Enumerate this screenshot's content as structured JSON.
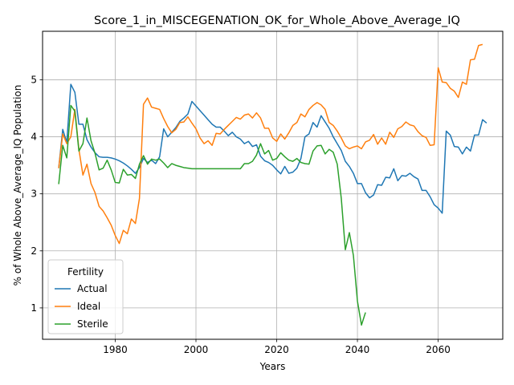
{
  "chart_data": {
    "type": "line",
    "title": "Score_1_in_MISCEGENATION_OK_for_Whole_Above_Average_IQ",
    "xlabel": "Years",
    "ylabel": "% of Whole Above_Average_IQ Population",
    "xlim": [
      1962,
      2076
    ],
    "ylim": [
      0.45,
      5.85
    ],
    "xticks": [
      1980,
      2000,
      2020,
      2040,
      2060
    ],
    "yticks": [
      1,
      2,
      3,
      4,
      5
    ],
    "grid": true,
    "legend": {
      "title": "Fertility",
      "placement": "lower-left"
    },
    "series": [
      {
        "name": "Actual",
        "color": "#1f77b4",
        "points": [
          [
            1966,
            3.45
          ],
          [
            1967,
            4.13
          ],
          [
            1968,
            3.9
          ],
          [
            1969,
            4.92
          ],
          [
            1970,
            4.78
          ],
          [
            1971,
            4.22
          ],
          [
            1972,
            4.22
          ],
          [
            1973,
            3.95
          ],
          [
            1974,
            3.82
          ],
          [
            1975,
            3.72
          ],
          [
            1976,
            3.65
          ],
          [
            1977,
            3.64
          ],
          [
            1978,
            3.64
          ],
          [
            1979,
            3.63
          ],
          [
            1980,
            3.61
          ],
          [
            1981,
            3.58
          ],
          [
            1982,
            3.54
          ],
          [
            1983,
            3.49
          ],
          [
            1984,
            3.43
          ],
          [
            1985,
            3.36
          ],
          [
            1986,
            3.46
          ],
          [
            1987,
            3.62
          ],
          [
            1988,
            3.55
          ],
          [
            1989,
            3.59
          ],
          [
            1990,
            3.53
          ],
          [
            1991,
            3.65
          ],
          [
            1992,
            4.14
          ],
          [
            1993,
            4.0
          ],
          [
            1994,
            4.08
          ],
          [
            1995,
            4.16
          ],
          [
            1996,
            4.27
          ],
          [
            1997,
            4.33
          ],
          [
            1998,
            4.4
          ],
          [
            1999,
            4.62
          ],
          [
            2000,
            4.54
          ],
          [
            2001,
            4.46
          ],
          [
            2002,
            4.38
          ],
          [
            2003,
            4.3
          ],
          [
            2004,
            4.22
          ],
          [
            2005,
            4.17
          ],
          [
            2006,
            4.17
          ],
          [
            2007,
            4.1
          ],
          [
            2008,
            4.02
          ],
          [
            2009,
            4.08
          ],
          [
            2010,
            4.0
          ],
          [
            2011,
            3.96
          ],
          [
            2012,
            3.88
          ],
          [
            2013,
            3.92
          ],
          [
            2014,
            3.83
          ],
          [
            2015,
            3.86
          ],
          [
            2016,
            3.66
          ],
          [
            2017,
            3.58
          ],
          [
            2018,
            3.55
          ],
          [
            2019,
            3.5
          ],
          [
            2020,
            3.42
          ],
          [
            2021,
            3.35
          ],
          [
            2022,
            3.48
          ],
          [
            2023,
            3.36
          ],
          [
            2024,
            3.38
          ],
          [
            2025,
            3.45
          ],
          [
            2026,
            3.62
          ],
          [
            2027,
            4.0
          ],
          [
            2028,
            4.05
          ],
          [
            2029,
            4.25
          ],
          [
            2030,
            4.17
          ],
          [
            2031,
            4.37
          ],
          [
            2032,
            4.26
          ],
          [
            2033,
            4.15
          ],
          [
            2034,
            4.0
          ],
          [
            2035,
            3.88
          ],
          [
            2036,
            3.76
          ],
          [
            2037,
            3.57
          ],
          [
            2038,
            3.48
          ],
          [
            2039,
            3.36
          ],
          [
            2040,
            3.18
          ],
          [
            2041,
            3.18
          ],
          [
            2042,
            3.02
          ],
          [
            2043,
            2.93
          ],
          [
            2044,
            2.98
          ],
          [
            2045,
            3.16
          ],
          [
            2046,
            3.15
          ],
          [
            2047,
            3.29
          ],
          [
            2048,
            3.28
          ],
          [
            2049,
            3.44
          ],
          [
            2050,
            3.23
          ],
          [
            2051,
            3.32
          ],
          [
            2052,
            3.31
          ],
          [
            2053,
            3.36
          ],
          [
            2054,
            3.3
          ],
          [
            2055,
            3.26
          ],
          [
            2056,
            3.06
          ],
          [
            2057,
            3.06
          ],
          [
            2058,
            2.95
          ],
          [
            2059,
            2.81
          ],
          [
            2060,
            2.75
          ],
          [
            2061,
            2.66
          ],
          [
            2062,
            4.1
          ],
          [
            2063,
            4.03
          ],
          [
            2064,
            3.83
          ],
          [
            2065,
            3.82
          ],
          [
            2066,
            3.7
          ],
          [
            2067,
            3.82
          ],
          [
            2068,
            3.75
          ],
          [
            2069,
            4.03
          ],
          [
            2070,
            4.03
          ],
          [
            2071,
            4.3
          ],
          [
            2072,
            4.24
          ]
        ]
      },
      {
        "name": "Ideal",
        "color": "#ff7f0e",
        "points": [
          [
            1966,
            3.45
          ],
          [
            1967,
            4.05
          ],
          [
            1968,
            3.88
          ],
          [
            1969,
            4.0
          ],
          [
            1970,
            4.48
          ],
          [
            1971,
            3.78
          ],
          [
            1972,
            3.33
          ],
          [
            1973,
            3.52
          ],
          [
            1974,
            3.18
          ],
          [
            1975,
            3.02
          ],
          [
            1976,
            2.78
          ],
          [
            1977,
            2.7
          ],
          [
            1978,
            2.58
          ],
          [
            1979,
            2.45
          ],
          [
            1980,
            2.27
          ],
          [
            1981,
            2.13
          ],
          [
            1982,
            2.36
          ],
          [
            1983,
            2.3
          ],
          [
            1984,
            2.56
          ],
          [
            1985,
            2.48
          ],
          [
            1986,
            2.92
          ],
          [
            1987,
            4.57
          ],
          [
            1988,
            4.68
          ],
          [
            1989,
            4.52
          ],
          [
            1990,
            4.5
          ],
          [
            1991,
            4.48
          ],
          [
            1992,
            4.32
          ],
          [
            1993,
            4.18
          ],
          [
            1994,
            4.07
          ],
          [
            1995,
            4.13
          ],
          [
            1996,
            4.25
          ],
          [
            1997,
            4.26
          ],
          [
            1998,
            4.35
          ],
          [
            1999,
            4.24
          ],
          [
            2000,
            4.14
          ],
          [
            2001,
            3.98
          ],
          [
            2002,
            3.88
          ],
          [
            2003,
            3.93
          ],
          [
            2004,
            3.85
          ],
          [
            2005,
            4.06
          ],
          [
            2006,
            4.05
          ],
          [
            2007,
            4.13
          ],
          [
            2008,
            4.2
          ],
          [
            2009,
            4.27
          ],
          [
            2010,
            4.34
          ],
          [
            2011,
            4.31
          ],
          [
            2012,
            4.38
          ],
          [
            2013,
            4.4
          ],
          [
            2014,
            4.33
          ],
          [
            2015,
            4.42
          ],
          [
            2016,
            4.33
          ],
          [
            2017,
            4.15
          ],
          [
            2018,
            4.15
          ],
          [
            2019,
            3.98
          ],
          [
            2020,
            3.92
          ],
          [
            2021,
            4.05
          ],
          [
            2022,
            3.96
          ],
          [
            2023,
            4.07
          ],
          [
            2024,
            4.2
          ],
          [
            2025,
            4.25
          ],
          [
            2026,
            4.4
          ],
          [
            2027,
            4.35
          ],
          [
            2028,
            4.48
          ],
          [
            2029,
            4.55
          ],
          [
            2030,
            4.6
          ],
          [
            2031,
            4.56
          ],
          [
            2032,
            4.48
          ],
          [
            2033,
            4.25
          ],
          [
            2034,
            4.2
          ],
          [
            2035,
            4.1
          ],
          [
            2036,
            3.98
          ],
          [
            2037,
            3.84
          ],
          [
            2038,
            3.79
          ],
          [
            2039,
            3.82
          ],
          [
            2040,
            3.84
          ],
          [
            2041,
            3.79
          ],
          [
            2042,
            3.91
          ],
          [
            2043,
            3.94
          ],
          [
            2044,
            4.04
          ],
          [
            2045,
            3.87
          ],
          [
            2046,
            3.98
          ],
          [
            2047,
            3.87
          ],
          [
            2048,
            4.08
          ],
          [
            2049,
            3.99
          ],
          [
            2050,
            4.14
          ],
          [
            2051,
            4.18
          ],
          [
            2052,
            4.26
          ],
          [
            2053,
            4.21
          ],
          [
            2054,
            4.19
          ],
          [
            2055,
            4.09
          ],
          [
            2056,
            4.02
          ],
          [
            2057,
            3.99
          ],
          [
            2058,
            3.85
          ],
          [
            2059,
            3.86
          ],
          [
            2060,
            5.21
          ],
          [
            2061,
            4.96
          ],
          [
            2062,
            4.95
          ],
          [
            2063,
            4.85
          ],
          [
            2064,
            4.8
          ],
          [
            2065,
            4.69
          ],
          [
            2066,
            4.96
          ],
          [
            2067,
            4.92
          ],
          [
            2068,
            5.35
          ],
          [
            2069,
            5.36
          ],
          [
            2070,
            5.6
          ],
          [
            2071,
            5.62
          ]
        ]
      },
      {
        "name": "Sterile",
        "color": "#2ca02c",
        "points": [
          [
            1966,
            3.17
          ],
          [
            1967,
            3.85
          ],
          [
            1968,
            3.63
          ],
          [
            1969,
            4.55
          ],
          [
            1970,
            4.45
          ],
          [
            1971,
            3.75
          ],
          [
            1972,
            3.88
          ],
          [
            1973,
            4.33
          ],
          [
            1974,
            3.93
          ],
          [
            1975,
            3.71
          ],
          [
            1976,
            3.42
          ],
          [
            1977,
            3.45
          ],
          [
            1978,
            3.59
          ],
          [
            1979,
            3.42
          ],
          [
            1980,
            3.2
          ],
          [
            1981,
            3.19
          ],
          [
            1982,
            3.43
          ],
          [
            1983,
            3.33
          ],
          [
            1984,
            3.34
          ],
          [
            1985,
            3.27
          ],
          [
            1986,
            3.52
          ],
          [
            1987,
            3.67
          ],
          [
            1988,
            3.52
          ],
          [
            1989,
            3.61
          ],
          [
            1990,
            3.59
          ],
          [
            1991,
            3.61
          ],
          [
            1992,
            3.54
          ],
          [
            1993,
            3.46
          ],
          [
            1994,
            3.53
          ],
          [
            1995,
            3.5
          ],
          [
            1996,
            3.48
          ],
          [
            1997,
            3.46
          ],
          [
            1998,
            3.45
          ],
          [
            1999,
            3.44
          ],
          [
            2000,
            3.44
          ],
          [
            2001,
            3.44
          ],
          [
            2002,
            3.44
          ],
          [
            2003,
            3.44
          ],
          [
            2004,
            3.44
          ],
          [
            2005,
            3.44
          ],
          [
            2006,
            3.44
          ],
          [
            2007,
            3.44
          ],
          [
            2008,
            3.44
          ],
          [
            2009,
            3.44
          ],
          [
            2010,
            3.44
          ],
          [
            2011,
            3.44
          ],
          [
            2012,
            3.53
          ],
          [
            2013,
            3.53
          ],
          [
            2014,
            3.57
          ],
          [
            2015,
            3.68
          ],
          [
            2016,
            3.88
          ],
          [
            2017,
            3.7
          ],
          [
            2018,
            3.76
          ],
          [
            2019,
            3.59
          ],
          [
            2020,
            3.62
          ],
          [
            2021,
            3.72
          ],
          [
            2022,
            3.65
          ],
          [
            2023,
            3.59
          ],
          [
            2024,
            3.57
          ],
          [
            2025,
            3.62
          ],
          [
            2026,
            3.55
          ],
          [
            2027,
            3.53
          ],
          [
            2028,
            3.52
          ],
          [
            2029,
            3.75
          ],
          [
            2030,
            3.84
          ],
          [
            2031,
            3.85
          ],
          [
            2032,
            3.7
          ],
          [
            2033,
            3.78
          ],
          [
            2034,
            3.73
          ],
          [
            2035,
            3.52
          ],
          [
            2036,
            2.92
          ],
          [
            2037,
            2.02
          ],
          [
            2038,
            2.32
          ],
          [
            2039,
            1.92
          ],
          [
            2040,
            1.12
          ],
          [
            2041,
            0.7
          ],
          [
            2042,
            0.92
          ]
        ]
      }
    ]
  }
}
